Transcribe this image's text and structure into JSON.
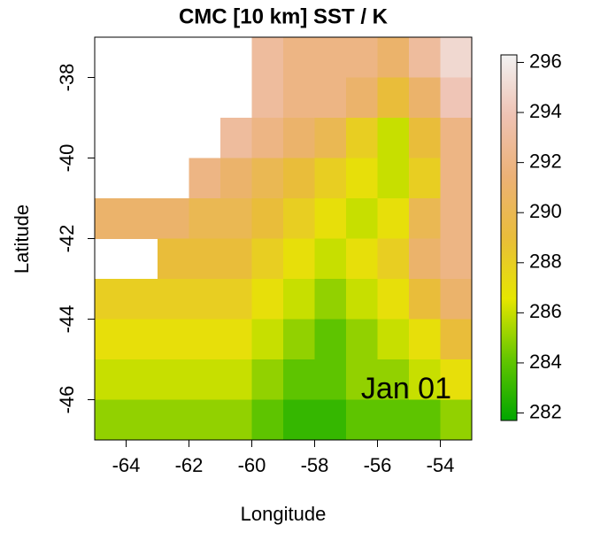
{
  "chart_data": {
    "type": "heatmap",
    "title": "CMC [10 km] SST / K",
    "xlabel": "Longitude",
    "ylabel": "Latitude",
    "annotation": "Jan 01",
    "xlim": [
      -65,
      -53
    ],
    "ylim": [
      -47,
      -37
    ],
    "xticks": [
      -64,
      -62,
      -60,
      -58,
      -56,
      -54
    ],
    "yticks": [
      -46,
      -44,
      -42,
      -40,
      -38
    ],
    "x": [
      -64.5,
      -63.5,
      -62.5,
      -61.5,
      -60.5,
      -59.5,
      -58.5,
      -57.5,
      -56.5,
      -55.5,
      -54.5,
      -53.5
    ],
    "y": [
      -37.5,
      -38.5,
      -39.5,
      -40.5,
      -41.5,
      -42.5,
      -43.5,
      -44.5,
      -45.5,
      -46.5
    ],
    "z": [
      [
        null,
        null,
        null,
        null,
        null,
        293,
        292,
        292,
        292,
        291,
        293,
        295
      ],
      [
        null,
        null,
        null,
        null,
        null,
        293,
        292,
        292,
        291,
        289,
        291,
        294
      ],
      [
        null,
        null,
        null,
        null,
        293,
        292,
        291,
        290,
        288,
        286,
        289,
        292
      ],
      [
        null,
        null,
        null,
        292,
        291,
        290,
        289,
        288,
        287,
        286,
        288,
        292
      ],
      [
        291,
        291,
        291,
        290,
        290,
        289,
        288,
        287,
        286,
        287,
        290,
        292
      ],
      [
        null,
        null,
        289,
        289,
        289,
        288,
        287,
        286,
        287,
        288,
        291,
        292
      ],
      [
        288,
        288,
        288,
        288,
        288,
        287,
        286,
        285,
        286,
        287,
        289,
        291
      ],
      [
        287,
        287,
        287,
        287,
        287,
        286,
        285,
        284,
        285,
        286,
        287,
        289
      ],
      [
        286,
        286,
        286,
        286,
        286,
        285,
        284,
        284,
        285,
        285,
        286,
        287
      ],
      [
        285,
        285,
        285,
        285,
        285,
        284,
        283,
        283,
        284,
        284,
        284,
        285
      ]
    ],
    "colorbar": {
      "lim": [
        281.7,
        296.3
      ],
      "ticks": [
        282,
        284,
        286,
        288,
        290,
        292,
        294,
        296
      ],
      "colors": [
        "#00A600",
        "#63C600",
        "#E6E600",
        "#E9BD3A",
        "#ECB176",
        "#EFC2B3",
        "#F2F2F2"
      ]
    }
  }
}
